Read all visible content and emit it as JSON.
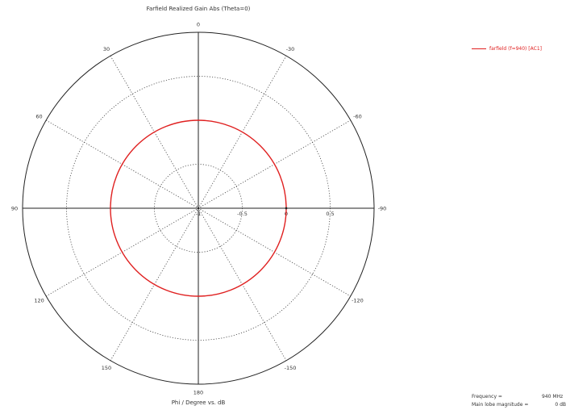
{
  "chart_data": {
    "type": "polar",
    "title": "Farfield Realized Gain Abs (Theta=0)",
    "xlabel": "Phi / Degree vs. dB",
    "angle_labels": [
      "0",
      "30",
      "60",
      "90",
      "120",
      "150",
      "180",
      "-150",
      "-120",
      "-90",
      "-60",
      "-30"
    ],
    "radial_ticks": [
      -1,
      -0.5,
      0,
      0.5
    ],
    "radial_tick_labels": [
      "-1",
      "-0.5",
      "0",
      "0.5"
    ],
    "rlim": [
      -1,
      1
    ],
    "series": [
      {
        "name": "farfield (f=940) [AC1]",
        "color": "#e02020",
        "phi": [
          0,
          30,
          60,
          90,
          120,
          150,
          180,
          210,
          240,
          270,
          300,
          330,
          360
        ],
        "gain_db": [
          0,
          0,
          0,
          0,
          0,
          0,
          0,
          0,
          0,
          0,
          0,
          0,
          0
        ]
      }
    ],
    "legend_position": "top-right",
    "grid": true
  },
  "info": {
    "frequency_label": "Frequency =",
    "frequency_value": "940 MHz",
    "main_lobe_label": "Main lobe magnitude =",
    "main_lobe_value": "0 dB"
  }
}
